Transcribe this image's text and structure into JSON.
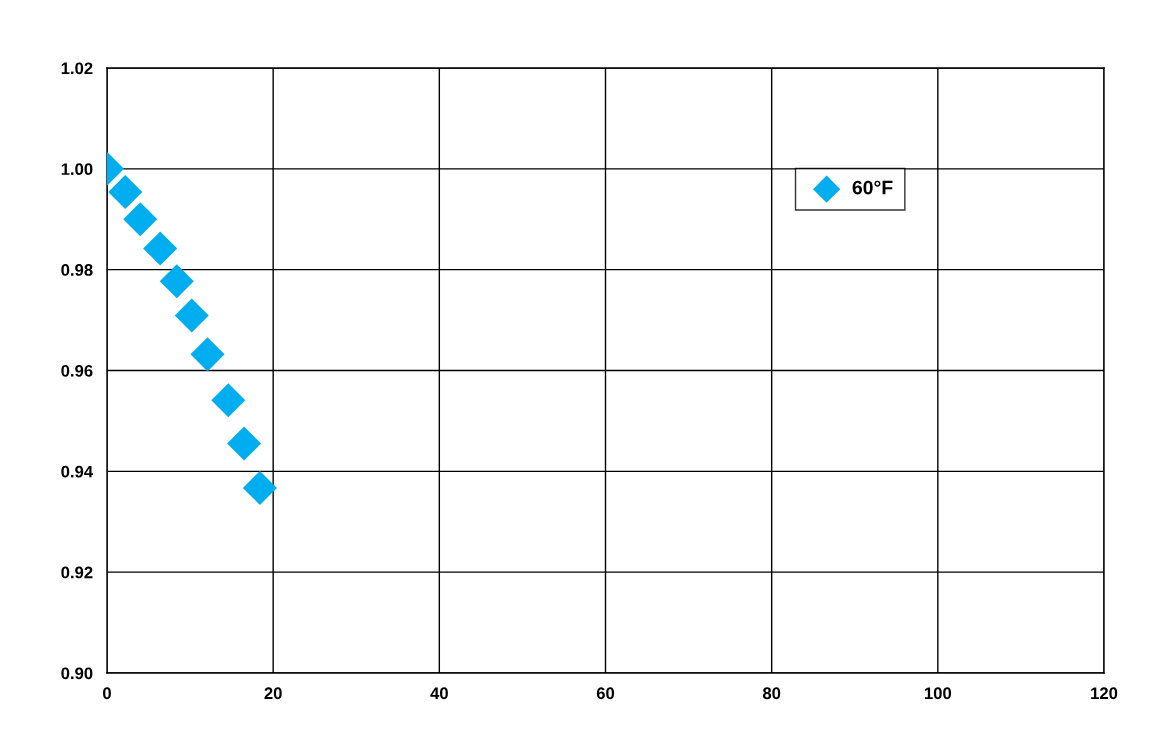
{
  "chart_data": {
    "type": "scatter",
    "series": [
      {
        "name": "60°F",
        "color": "#00aeef",
        "x": [
          0,
          2.2,
          4.0,
          6.4,
          8.4,
          10.2,
          12.1,
          14.6,
          16.5,
          18.4
        ],
        "values": [
          1.0,
          0.9954,
          0.99,
          0.9842,
          0.9777,
          0.9709,
          0.9632,
          0.9541,
          0.9455,
          0.9367
        ]
      }
    ],
    "xlim": [
      0,
      120
    ],
    "xticks": [
      0,
      20,
      40,
      60,
      80,
      100,
      120
    ],
    "ylim": [
      0.9,
      1.02
    ],
    "yticks": [
      {
        "value": 0.9,
        "label": "0.90"
      },
      {
        "value": 0.92,
        "label": "0.92"
      },
      {
        "value": 0.94,
        "label": "0.94"
      },
      {
        "value": 0.96,
        "label": "0.96"
      },
      {
        "value": 0.98,
        "label": "0.98"
      },
      {
        "value": 1.0,
        "label": "1.00"
      },
      {
        "value": 1.02,
        "label": "1.02"
      }
    ],
    "grid": true,
    "legend": "top right",
    "marker": "diamond"
  }
}
